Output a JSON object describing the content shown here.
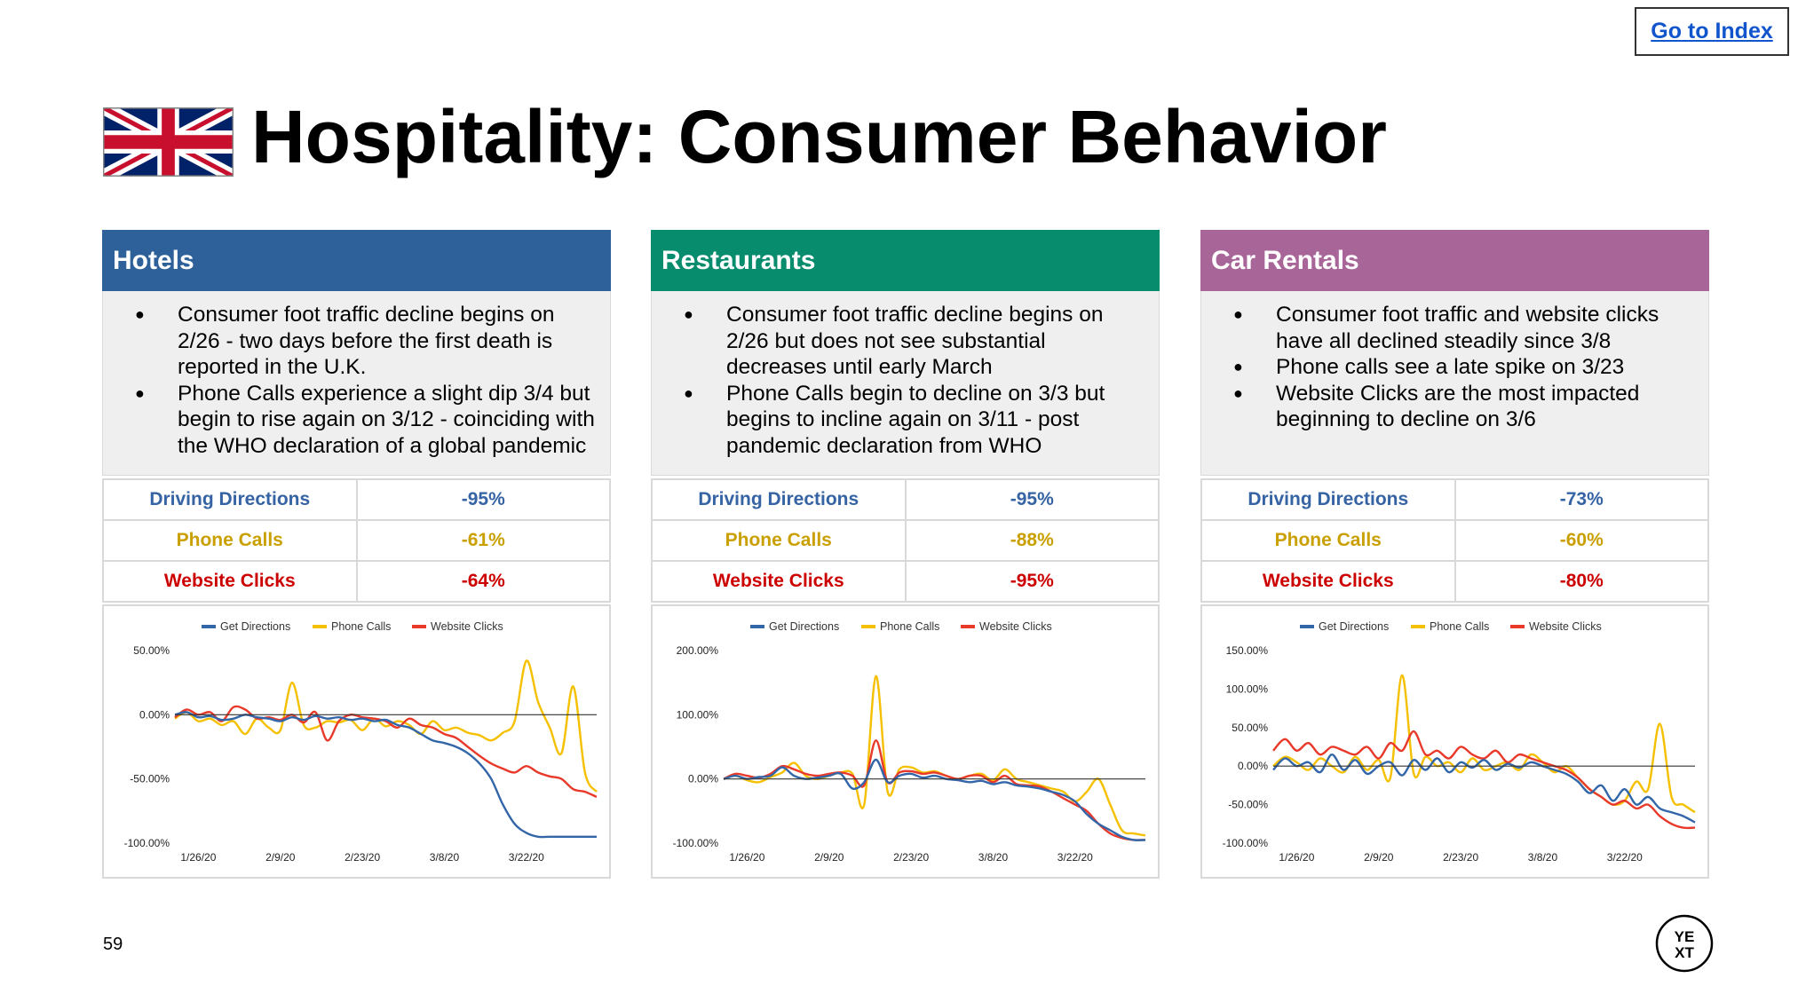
{
  "header": {
    "index_link": "Go to Index",
    "title": "Hospitality: Consumer Behavior"
  },
  "colors": {
    "get_directions": "#3366a8",
    "phone_calls": "#f5c000",
    "website_clicks": "#e8392a",
    "metric_directions": "#3563a3",
    "metric_phone": "#c9a000",
    "metric_website": "#cc0000",
    "hotels": "#2e6199",
    "restaurants": "#088c6e",
    "car_rentals": "#a86698"
  },
  "panels": [
    {
      "name": "Hotels",
      "bullets": [
        "Consumer foot traffic decline begins on 2/26 - two days before the first death is reported in the U.K.",
        "Phone Calls experience a slight dip 3/4 but begin to rise again on 3/12 - coinciding with the WHO declaration of a global pandemic"
      ],
      "metrics": [
        {
          "label": "Driving Directions",
          "value": "-95%"
        },
        {
          "label": "Phone Calls",
          "value": "-61%"
        },
        {
          "label": "Website Clicks",
          "value": "-64%"
        }
      ]
    },
    {
      "name": "Restaurants",
      "bullets": [
        "Consumer foot traffic decline begins on 2/26 but does not see substantial decreases until early March",
        "Phone Calls begin to decline on 3/3 but begins to incline again on 3/11 - post pandemic declaration from WHO"
      ],
      "metrics": [
        {
          "label": "Driving Directions",
          "value": "-95%"
        },
        {
          "label": "Phone Calls",
          "value": "-88%"
        },
        {
          "label": "Website Clicks",
          "value": "-95%"
        }
      ]
    },
    {
      "name": "Car Rentals",
      "bullets": [
        "Consumer foot traffic and website clicks have all declined steadily since 3/8",
        "Phone calls see a late spike on 3/23",
        "Website Clicks are the most impacted beginning to decline on 3/6"
      ],
      "metrics": [
        {
          "label": "Driving Directions",
          "value": "-73%"
        },
        {
          "label": "Phone Calls",
          "value": "-60%"
        },
        {
          "label": "Website Clicks",
          "value": "-80%"
        }
      ]
    }
  ],
  "chart_data": [
    {
      "type": "line",
      "title": "Hotels",
      "x": [
        0,
        2,
        4,
        6,
        8,
        10,
        12,
        14,
        16,
        18,
        20,
        22,
        24,
        26,
        28,
        30,
        32,
        34,
        36,
        38,
        40,
        42,
        44,
        46,
        48,
        50,
        52,
        54,
        56,
        58,
        60,
        62,
        64,
        66,
        68,
        70,
        72
      ],
      "x_ticks": [
        {
          "pos": 4,
          "label": "1/26/20"
        },
        {
          "pos": 18,
          "label": "2/9/20"
        },
        {
          "pos": 32,
          "label": "2/23/20"
        },
        {
          "pos": 46,
          "label": "3/8/20"
        },
        {
          "pos": 60,
          "label": "3/22/20"
        }
      ],
      "y_ticks": [
        {
          "value": 50,
          "label": "50.00%"
        },
        {
          "value": 0,
          "label": "0.00%"
        },
        {
          "value": -50,
          "label": "-50.00%"
        },
        {
          "value": -100,
          "label": "-100.00%"
        }
      ],
      "ylim": [
        -100,
        50
      ],
      "series": [
        {
          "name": "Get Directions",
          "values": [
            0,
            2,
            -2,
            -1,
            -4,
            -3,
            0,
            -2,
            -3,
            -5,
            -2,
            -4,
            -1,
            -3,
            -2,
            -4,
            -3,
            -5,
            -4,
            -8,
            -10,
            -15,
            -20,
            -22,
            -25,
            -30,
            -38,
            -50,
            -70,
            -85,
            -92,
            -95,
            -95,
            -95,
            -95,
            -95,
            -95
          ]
        },
        {
          "name": "Phone Calls",
          "values": [
            -3,
            2,
            -5,
            -3,
            -8,
            -5,
            -15,
            -3,
            -10,
            -12,
            25,
            -8,
            -10,
            -5,
            -6,
            -4,
            -12,
            -3,
            -9,
            -5,
            -8,
            -15,
            -5,
            -12,
            -10,
            -14,
            -16,
            -20,
            -14,
            -5,
            42,
            10,
            -10,
            -30,
            22,
            -45,
            -60
          ]
        },
        {
          "name": "Website Clicks",
          "values": [
            -2,
            4,
            0,
            2,
            -5,
            6,
            4,
            -3,
            -2,
            -4,
            0,
            -6,
            2,
            -20,
            -5,
            0,
            -2,
            -3,
            -5,
            -10,
            -3,
            -8,
            -10,
            -15,
            -18,
            -25,
            -32,
            -38,
            -42,
            -45,
            -40,
            -45,
            -48,
            -50,
            -58,
            -60,
            -64
          ]
        }
      ]
    },
    {
      "type": "line",
      "title": "Restaurants",
      "x": [
        0,
        2,
        4,
        6,
        8,
        10,
        12,
        14,
        16,
        18,
        20,
        22,
        24,
        26,
        28,
        30,
        32,
        34,
        36,
        38,
        40,
        42,
        44,
        46,
        48,
        50,
        52,
        54,
        56,
        58,
        60,
        62,
        64,
        66,
        68,
        70,
        72
      ],
      "x_ticks": [
        {
          "pos": 4,
          "label": "1/26/20"
        },
        {
          "pos": 18,
          "label": "2/9/20"
        },
        {
          "pos": 32,
          "label": "2/23/20"
        },
        {
          "pos": 46,
          "label": "3/8/20"
        },
        {
          "pos": 60,
          "label": "3/22/20"
        }
      ],
      "y_ticks": [
        {
          "value": 200,
          "label": "200.00%"
        },
        {
          "value": 100,
          "label": "100.00%"
        },
        {
          "value": 0,
          "label": "0.00%"
        },
        {
          "value": -100,
          "label": "-100.00%"
        }
      ],
      "ylim": [
        -100,
        200
      ],
      "series": [
        {
          "name": "Get Directions",
          "values": [
            0,
            5,
            0,
            3,
            5,
            18,
            5,
            0,
            2,
            5,
            8,
            -15,
            -5,
            30,
            -5,
            5,
            8,
            2,
            5,
            0,
            -2,
            -5,
            -3,
            -8,
            -5,
            -10,
            -12,
            -15,
            -20,
            -25,
            -35,
            -55,
            -70,
            -80,
            -90,
            -95,
            -95
          ]
        },
        {
          "name": "Phone Calls",
          "values": [
            0,
            5,
            -2,
            -5,
            3,
            10,
            25,
            5,
            0,
            5,
            10,
            8,
            -40,
            160,
            -20,
            15,
            18,
            10,
            12,
            5,
            0,
            5,
            8,
            -2,
            15,
            0,
            -5,
            -10,
            -15,
            -20,
            -35,
            -20,
            0,
            -40,
            -80,
            -85,
            -88
          ]
        },
        {
          "name": "Website Clicks",
          "values": [
            0,
            8,
            5,
            2,
            8,
            20,
            15,
            8,
            5,
            8,
            10,
            5,
            -10,
            60,
            -5,
            10,
            12,
            8,
            10,
            5,
            0,
            5,
            5,
            -5,
            5,
            -8,
            -10,
            -12,
            -20,
            -30,
            -40,
            -50,
            -70,
            -85,
            -92,
            -95,
            -95
          ]
        }
      ]
    },
    {
      "type": "line",
      "title": "Car Rentals",
      "x": [
        0,
        2,
        4,
        6,
        8,
        10,
        12,
        14,
        16,
        18,
        20,
        22,
        24,
        26,
        28,
        30,
        32,
        34,
        36,
        38,
        40,
        42,
        44,
        46,
        48,
        50,
        52,
        54,
        56,
        58,
        60,
        62,
        64,
        66,
        68,
        70,
        72
      ],
      "x_ticks": [
        {
          "pos": 4,
          "label": "1/26/20"
        },
        {
          "pos": 18,
          "label": "2/9/20"
        },
        {
          "pos": 32,
          "label": "2/23/20"
        },
        {
          "pos": 46,
          "label": "3/8/20"
        },
        {
          "pos": 60,
          "label": "3/22/20"
        }
      ],
      "y_ticks": [
        {
          "value": 150,
          "label": "150.00%"
        },
        {
          "value": 100,
          "label": "100.00%"
        },
        {
          "value": 50,
          "label": "50.00%"
        },
        {
          "value": 0,
          "label": "0.00%"
        },
        {
          "value": -50,
          "label": "-50.00%"
        },
        {
          "value": -100,
          "label": "-100.00%"
        }
      ],
      "ylim": [
        -100,
        150
      ],
      "series": [
        {
          "name": "Get Directions",
          "values": [
            -5,
            10,
            0,
            5,
            -8,
            15,
            -5,
            8,
            -10,
            0,
            5,
            -12,
            8,
            -5,
            10,
            -8,
            5,
            -2,
            8,
            -5,
            3,
            -2,
            5,
            0,
            -5,
            -10,
            -20,
            -35,
            -25,
            -45,
            -30,
            -50,
            -40,
            -55,
            -60,
            -65,
            -73
          ]
        },
        {
          "name": "Phone Calls",
          "values": [
            0,
            12,
            5,
            -5,
            10,
            0,
            -8,
            12,
            -5,
            8,
            -15,
            118,
            -10,
            12,
            0,
            5,
            -8,
            10,
            -5,
            0,
            5,
            -5,
            15,
            5,
            -8,
            0,
            -15,
            -30,
            -40,
            -50,
            -45,
            -20,
            -30,
            55,
            -40,
            -50,
            -60
          ]
        },
        {
          "name": "Website Clicks",
          "values": [
            20,
            35,
            20,
            30,
            15,
            25,
            20,
            15,
            25,
            10,
            30,
            20,
            45,
            15,
            20,
            10,
            25,
            15,
            10,
            20,
            5,
            15,
            10,
            5,
            0,
            -5,
            -15,
            -30,
            -40,
            -50,
            -45,
            -55,
            -50,
            -65,
            -75,
            -80,
            -80
          ]
        }
      ]
    }
  ],
  "footer": {
    "page_number": "59",
    "logo_top": "YE",
    "logo_bottom": "XT"
  }
}
